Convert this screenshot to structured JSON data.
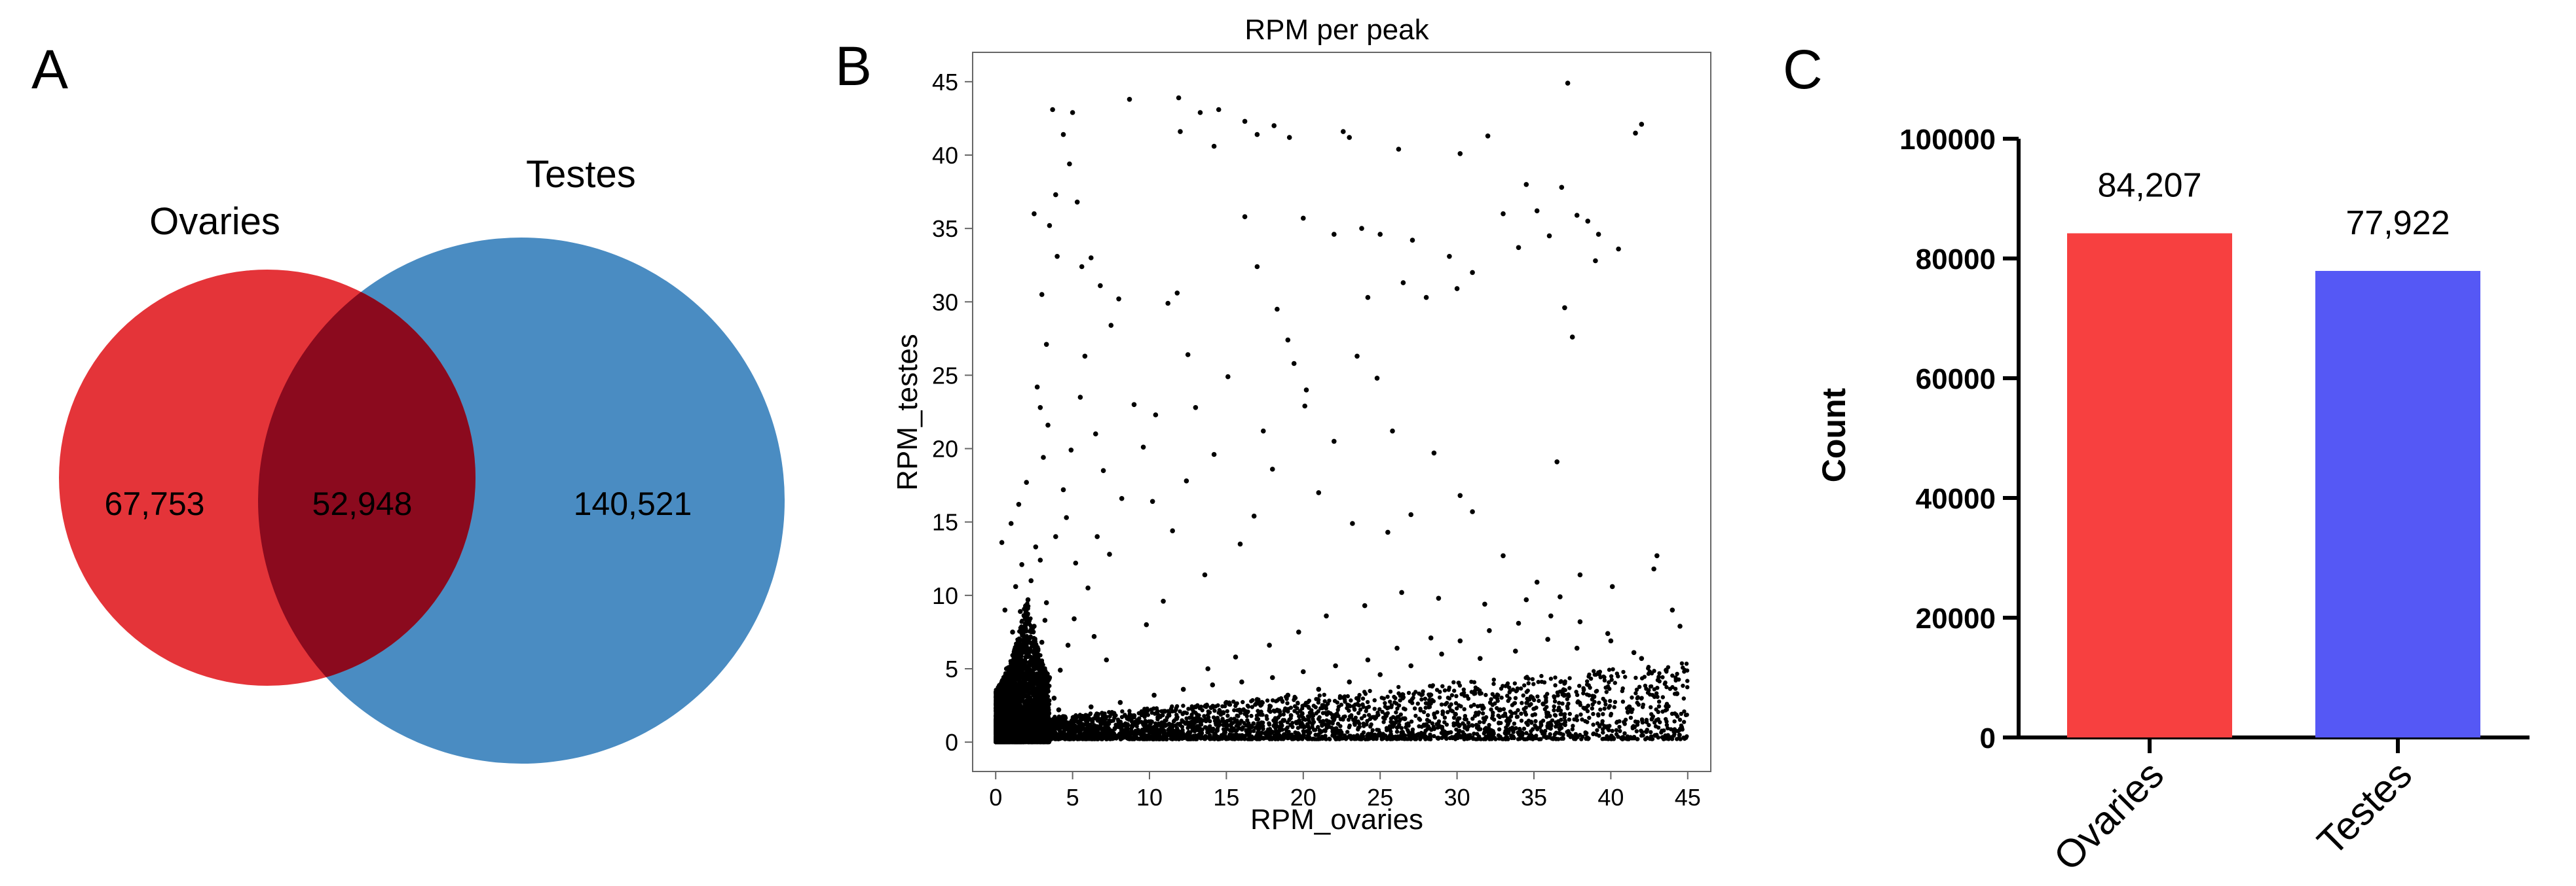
{
  "panel_labels": {
    "a": "A",
    "b": "B",
    "c": "C"
  },
  "colors": {
    "ovaries_circle": "#e32d33",
    "testes_circle": "#4a8cc2",
    "overlap": "#8b0a1e",
    "bar_ovaries": "#f74040",
    "bar_testes": "#5558f5",
    "points": "#000000"
  },
  "chart_data": [
    {
      "type": "venn",
      "sets": [
        {
          "name": "Ovaries",
          "only": "67,753"
        },
        {
          "name": "Testes",
          "only": "140,521"
        }
      ],
      "intersection": "52,948"
    },
    {
      "type": "scatter",
      "title": "RPM per peak",
      "xlabel": "RPM_ovaries",
      "ylabel": "RPM_testes",
      "xlim": [
        -1.5,
        46.5
      ],
      "ylim": [
        -2,
        47
      ],
      "xticks": [
        "0",
        "5",
        "10",
        "15",
        "20",
        "25",
        "30",
        "35",
        "40",
        "45"
      ],
      "yticks": [
        "0",
        "5",
        "10",
        "15",
        "20",
        "25",
        "30",
        "35",
        "40",
        "45"
      ],
      "grid": false,
      "points": [
        [
          0.5,
          0.6
        ],
        [
          0.8,
          1.2
        ],
        [
          1.0,
          2.0
        ],
        [
          1.2,
          0.4
        ],
        [
          1.5,
          3.1
        ],
        [
          1.8,
          1.5
        ],
        [
          2.0,
          2.6
        ],
        [
          2.2,
          4.0
        ],
        [
          2.4,
          1.0
        ],
        [
          2.6,
          5.5
        ],
        [
          2.8,
          2.2
        ],
        [
          3.0,
          6.8
        ],
        [
          1.1,
          7.5
        ],
        [
          1.6,
          8.9
        ],
        [
          2.1,
          9.7
        ],
        [
          0.7,
          5.0
        ],
        [
          0.9,
          3.7
        ],
        [
          1.4,
          6.2
        ],
        [
          1.9,
          4.6
        ],
        [
          2.5,
          7.9
        ],
        [
          0.3,
          2.4
        ],
        [
          0.6,
          9.0
        ],
        [
          1.3,
          10.6
        ],
        [
          1.7,
          12.1
        ],
        [
          2.3,
          11.0
        ],
        [
          3.2,
          8.3
        ],
        [
          3.5,
          4.4
        ],
        [
          3.8,
          3.0
        ],
        [
          4.1,
          2.2
        ],
        [
          4.5,
          1.6
        ],
        [
          0.4,
          13.6
        ],
        [
          1.0,
          14.9
        ],
        [
          1.5,
          16.2
        ],
        [
          2.0,
          17.7
        ],
        [
          2.6,
          13.3
        ],
        [
          3.1,
          19.4
        ],
        [
          3.4,
          21.6
        ],
        [
          2.7,
          24.2
        ],
        [
          2.9,
          22.8
        ],
        [
          3.3,
          27.1
        ],
        [
          3.0,
          30.5
        ],
        [
          2.5,
          36.0
        ],
        [
          3.5,
          35.2
        ],
        [
          4.0,
          33.1
        ],
        [
          3.7,
          43.1
        ],
        [
          3.9,
          37.3
        ],
        [
          4.4,
          41.4
        ],
        [
          4.8,
          39.4
        ],
        [
          5.0,
          42.9
        ],
        [
          5.3,
          36.8
        ],
        [
          5.6,
          32.4
        ],
        [
          6.2,
          33.0
        ],
        [
          6.8,
          31.1
        ],
        [
          7.5,
          28.4
        ],
        [
          8.0,
          30.2
        ],
        [
          6.5,
          21.0
        ],
        [
          7.0,
          18.5
        ],
        [
          5.8,
          26.3
        ],
        [
          5.5,
          23.5
        ],
        [
          4.9,
          19.9
        ],
        [
          4.6,
          15.3
        ],
        [
          5.2,
          12.2
        ],
        [
          6.0,
          10.5
        ],
        [
          6.6,
          14.0
        ],
        [
          7.4,
          12.8
        ],
        [
          8.2,
          16.6
        ],
        [
          9.0,
          23.0
        ],
        [
          9.6,
          20.1
        ],
        [
          10.4,
          22.3
        ],
        [
          11.2,
          29.9
        ],
        [
          11.8,
          30.6
        ],
        [
          12.5,
          26.4
        ],
        [
          13.0,
          22.8
        ],
        [
          14.2,
          19.6
        ],
        [
          15.1,
          24.9
        ],
        [
          16.2,
          35.8
        ],
        [
          17.0,
          32.4
        ],
        [
          18.3,
          29.5
        ],
        [
          19.0,
          27.4
        ],
        [
          20.1,
          22.9
        ],
        [
          8.7,
          43.8
        ],
        [
          11.9,
          43.9
        ],
        [
          12.0,
          41.6
        ],
        [
          13.3,
          42.9
        ],
        [
          14.2,
          40.6
        ],
        [
          14.5,
          43.1
        ],
        [
          16.2,
          42.3
        ],
        [
          17.0,
          41.4
        ],
        [
          18.1,
          42.0
        ],
        [
          19.1,
          41.2
        ],
        [
          20.0,
          35.7
        ],
        [
          22.0,
          34.6
        ],
        [
          22.6,
          41.6
        ],
        [
          23.0,
          41.2
        ],
        [
          23.8,
          35.0
        ],
        [
          25.0,
          34.6
        ],
        [
          26.2,
          40.4
        ],
        [
          28.0,
          30.3
        ],
        [
          30.2,
          40.1
        ],
        [
          32.0,
          41.3
        ],
        [
          33.0,
          36.0
        ],
        [
          34.0,
          33.7
        ],
        [
          36.0,
          34.5
        ],
        [
          36.8,
          37.8
        ],
        [
          37.2,
          44.9
        ],
        [
          37.8,
          35.9
        ],
        [
          38.5,
          35.5
        ],
        [
          39.2,
          34.6
        ],
        [
          40.5,
          33.6
        ],
        [
          41.6,
          41.5
        ],
        [
          42.0,
          42.1
        ],
        [
          34.5,
          38.0
        ],
        [
          35.2,
          36.2
        ],
        [
          37.0,
          29.6
        ],
        [
          37.5,
          27.6
        ],
        [
          36.5,
          19.1
        ],
        [
          39.0,
          32.8
        ],
        [
          29.5,
          33.1
        ],
        [
          31.0,
          32.0
        ],
        [
          30.0,
          30.9
        ],
        [
          27.1,
          34.2
        ],
        [
          26.5,
          31.3
        ],
        [
          24.2,
          30.3
        ],
        [
          23.5,
          26.3
        ],
        [
          24.8,
          24.8
        ],
        [
          25.8,
          21.2
        ],
        [
          22.0,
          20.5
        ],
        [
          21.0,
          17.0
        ],
        [
          20.2,
          24.0
        ],
        [
          19.4,
          25.8
        ],
        [
          18.0,
          18.6
        ],
        [
          17.4,
          21.2
        ],
        [
          16.8,
          15.4
        ],
        [
          15.9,
          13.5
        ],
        [
          13.6,
          11.4
        ],
        [
          10.9,
          9.6
        ],
        [
          9.8,
          8.0
        ],
        [
          10.2,
          16.4
        ],
        [
          11.5,
          14.4
        ],
        [
          12.4,
          17.8
        ],
        [
          23.2,
          14.9
        ],
        [
          25.5,
          14.3
        ],
        [
          27.0,
          15.5
        ],
        [
          28.5,
          19.7
        ],
        [
          30.2,
          16.8
        ],
        [
          31.0,
          15.7
        ],
        [
          33.0,
          12.7
        ],
        [
          35.2,
          10.9
        ],
        [
          36.7,
          9.9
        ],
        [
          38.0,
          11.4
        ],
        [
          40.1,
          10.6
        ],
        [
          42.8,
          11.8
        ],
        [
          43.0,
          12.7
        ],
        [
          44.0,
          9.0
        ],
        [
          44.5,
          7.9
        ],
        [
          41.5,
          6.1
        ],
        [
          39.8,
          7.4
        ],
        [
          37.8,
          6.4
        ],
        [
          35.9,
          7.0
        ],
        [
          33.8,
          6.2
        ],
        [
          31.5,
          5.7
        ],
        [
          29.0,
          6.0
        ],
        [
          27.0,
          5.2
        ],
        [
          25.0,
          4.6
        ],
        [
          23.0,
          4.1
        ],
        [
          21.0,
          3.6
        ],
        [
          19.0,
          3.2
        ],
        [
          17.0,
          2.9
        ],
        [
          15.0,
          2.7
        ],
        [
          13.0,
          2.4
        ],
        [
          11.0,
          2.1
        ],
        [
          9.0,
          1.8
        ],
        [
          7.0,
          1.5
        ],
        [
          5.5,
          1.2
        ],
        [
          6.2,
          2.4
        ],
        [
          8.1,
          2.7
        ],
        [
          10.3,
          3.2
        ],
        [
          12.2,
          3.6
        ],
        [
          14.1,
          3.9
        ],
        [
          16.0,
          4.1
        ],
        [
          18.0,
          4.4
        ],
        [
          20.0,
          4.8
        ],
        [
          22.1,
          5.2
        ],
        [
          24.2,
          5.6
        ],
        [
          26.1,
          6.4
        ],
        [
          28.3,
          7.1
        ],
        [
          30.2,
          6.9
        ],
        [
          32.1,
          7.6
        ],
        [
          34.0,
          8.1
        ],
        [
          36.1,
          8.6
        ],
        [
          38.0,
          8.2
        ],
        [
          40.0,
          6.9
        ],
        [
          42.0,
          5.7
        ],
        [
          43.6,
          4.9
        ],
        [
          44.3,
          3.3
        ],
        [
          44.6,
          1.0
        ],
        [
          41.2,
          2.4
        ],
        [
          38.9,
          3.1
        ],
        [
          35.6,
          2.6
        ],
        [
          32.8,
          2.2
        ],
        [
          29.9,
          1.9
        ],
        [
          26.6,
          1.6
        ],
        [
          23.4,
          1.4
        ],
        [
          20.3,
          1.1
        ],
        [
          17.1,
          0.9
        ],
        [
          14.4,
          0.8
        ],
        [
          11.8,
          0.7
        ],
        [
          9.2,
          0.6
        ],
        [
          7.3,
          0.5
        ],
        [
          5.1,
          0.4
        ],
        [
          13.8,
          5.0
        ],
        [
          15.6,
          5.8
        ],
        [
          17.8,
          6.6
        ],
        [
          19.7,
          7.5
        ],
        [
          21.5,
          8.6
        ],
        [
          24.0,
          9.3
        ],
        [
          26.4,
          10.2
        ],
        [
          28.8,
          9.8
        ],
        [
          31.8,
          9.4
        ],
        [
          34.5,
          9.7
        ],
        [
          3.6,
          0.9
        ],
        [
          4.2,
          4.9
        ],
        [
          4.7,
          6.6
        ],
        [
          3.3,
          9.5
        ],
        [
          2.9,
          12.4
        ],
        [
          3.9,
          14.0
        ],
        [
          4.4,
          17.2
        ],
        [
          5.1,
          8.4
        ],
        [
          6.4,
          7.2
        ],
        [
          7.2,
          5.6
        ]
      ],
      "dense_regions": [
        {
          "x": [
            0,
            3.5
          ],
          "y": [
            0,
            10
          ],
          "n": 4500
        },
        {
          "x": [
            2,
            45
          ],
          "y": [
            0,
            6
          ],
          "n": 3200
        }
      ]
    },
    {
      "type": "bar",
      "categories": [
        "Ovaries",
        "Testes"
      ],
      "values": [
        84207,
        77922
      ],
      "value_labels": [
        "84,207",
        "77,922"
      ],
      "ylabel": "Count",
      "xlabel": "",
      "ylim": [
        0,
        100000
      ],
      "yticks": [
        "0",
        "20000",
        "40000",
        "60000",
        "80000",
        "100000"
      ]
    }
  ]
}
